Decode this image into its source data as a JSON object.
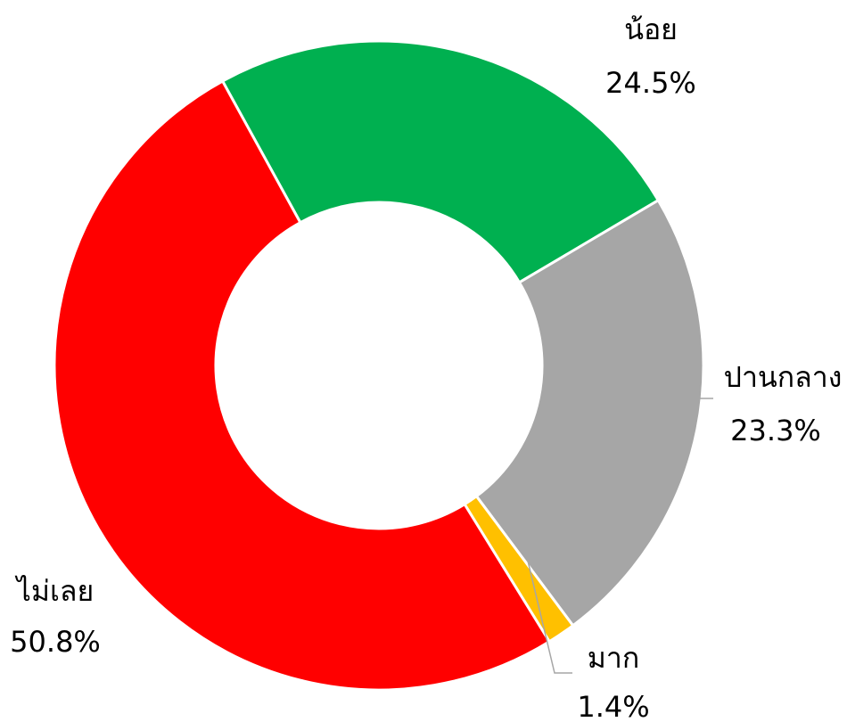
{
  "chart_data": {
    "type": "donut",
    "categories": [
      "น้อย",
      "ปานกลาง",
      "มาก",
      "ไม่เลย"
    ],
    "values": [
      24.5,
      23.3,
      1.4,
      50.8
    ],
    "value_labels": [
      "24.5%",
      "23.3%",
      "1.4%",
      "50.8%"
    ],
    "colors": [
      "#00b050",
      "#a6a6a6",
      "#ffc000",
      "#ff0000"
    ]
  }
}
